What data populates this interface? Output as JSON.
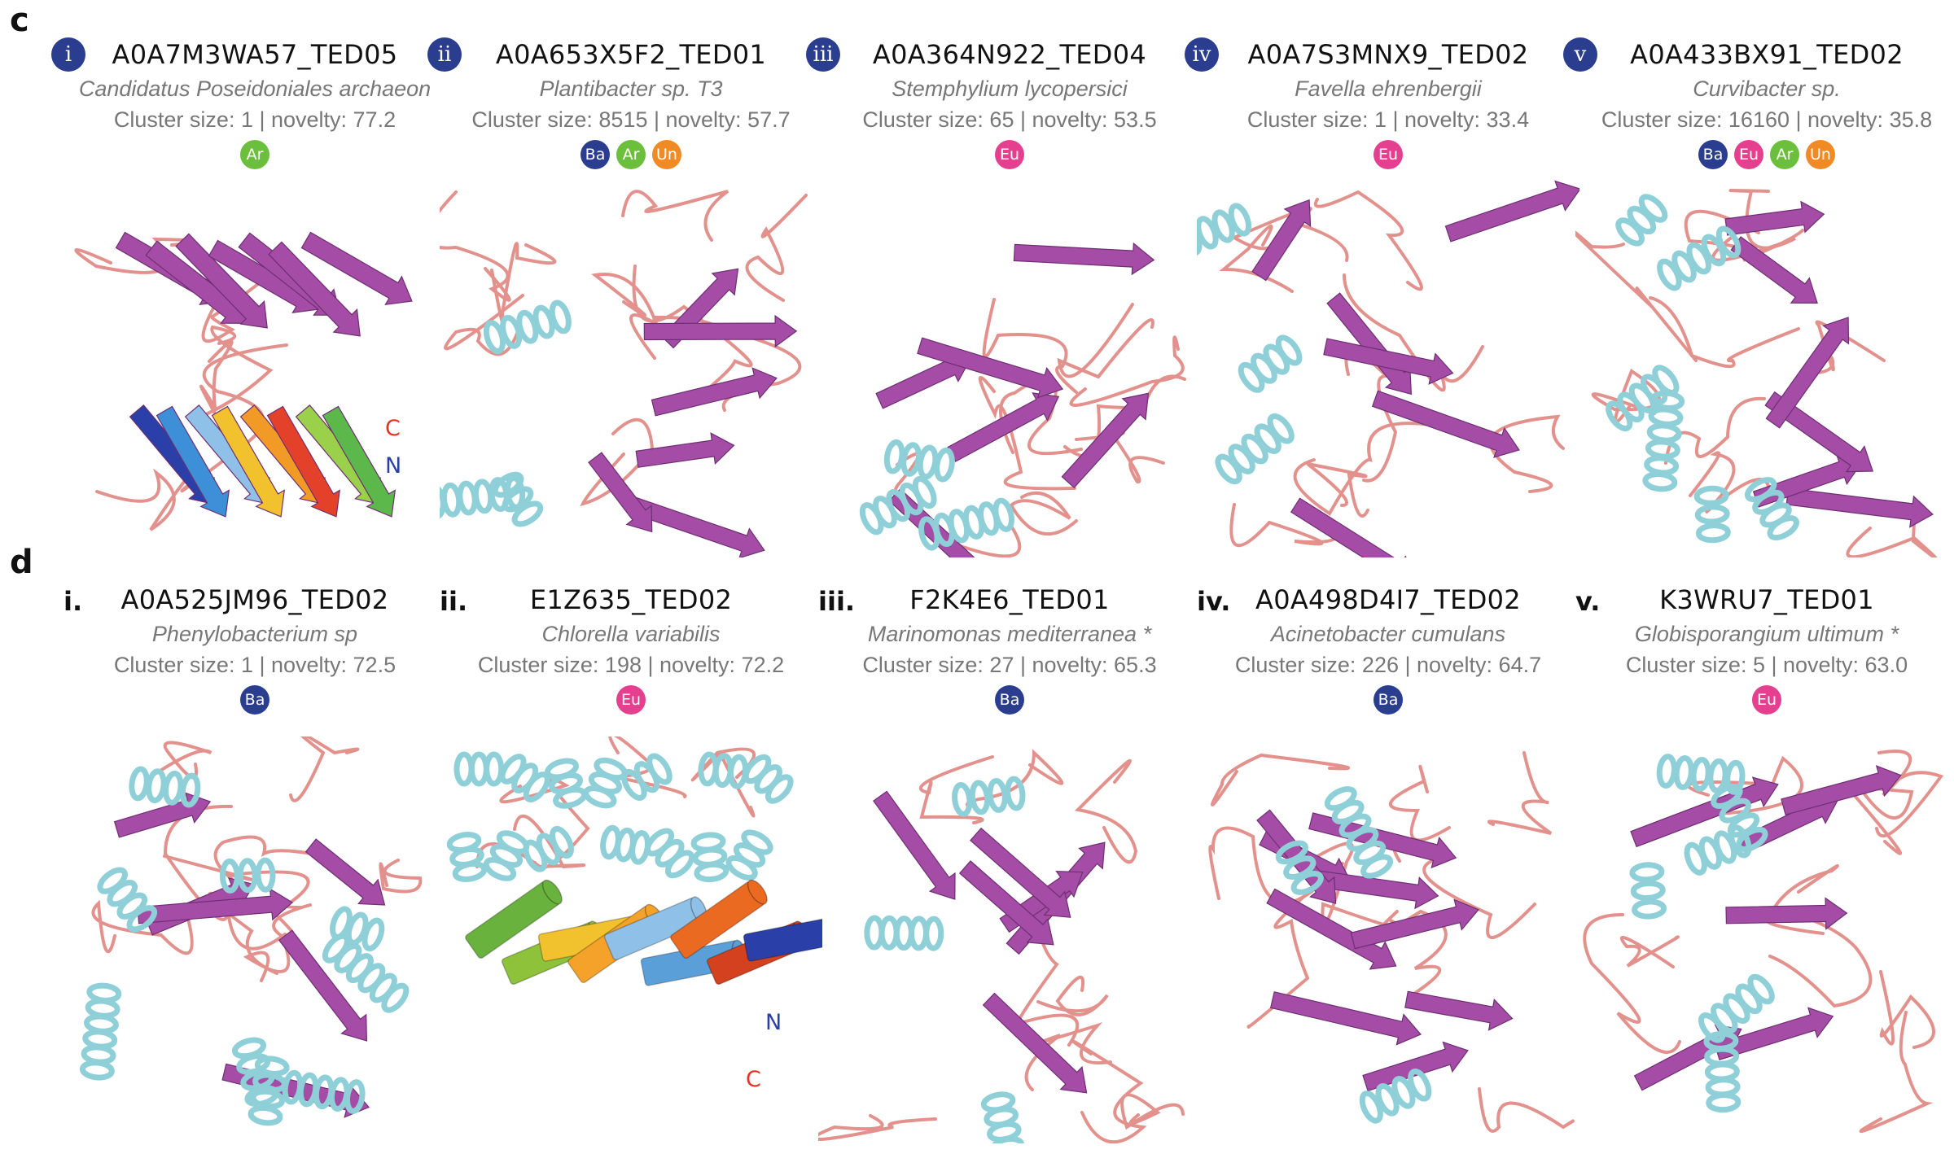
{
  "colors": {
    "Ba": "#2a3d8f",
    "Ar": "#6cbf3d",
    "Un": "#f08a24",
    "Eu": "#e5408f",
    "sheet": "#a44ca6",
    "helix": "#8fd0d8",
    "loop": "#e3918c"
  },
  "panels": {
    "c": "c",
    "d": "d"
  },
  "row_c": [
    {
      "roman": "i",
      "id": "A0A7M3WA57_TED05",
      "species": "Candidatus Poseidoniales archaeon",
      "meta": "Cluster size: 1 | novelty: 77.2",
      "badges": [
        "Ar"
      ],
      "labels": {
        "c": "C",
        "n": "N"
      }
    },
    {
      "roman": "ii",
      "id": "A0A653X5F2_TED01",
      "species": "Plantibacter sp. T3",
      "meta": "Cluster size: 8515 | novelty: 57.7",
      "badges": [
        "Ba",
        "Ar",
        "Un"
      ]
    },
    {
      "roman": "iii",
      "id": "A0A364N922_TED04",
      "species": "Stemphylium lycopersici",
      "meta": "Cluster size: 65 | novelty: 53.5",
      "badges": [
        "Eu"
      ]
    },
    {
      "roman": "iv",
      "id": "A0A7S3MNX9_TED02",
      "species": "Favella ehrenbergii",
      "meta": "Cluster size: 1 | novelty: 33.4",
      "badges": [
        "Eu"
      ]
    },
    {
      "roman": "v",
      "id": "A0A433BX91_TED02",
      "species": "Curvibacter sp.",
      "meta": "Cluster size: 16160 | novelty: 35.8",
      "badges": [
        "Ba",
        "Eu",
        "Ar",
        "Un"
      ]
    }
  ],
  "row_d": [
    {
      "roman": "i.",
      "id": "A0A525JM96_TED02",
      "species": "Phenylobacterium sp",
      "meta": "Cluster size: 1 | novelty: 72.5",
      "badges": [
        "Ba"
      ]
    },
    {
      "roman": "ii.",
      "id": "E1Z635_TED02",
      "species": "Chlorella variabilis",
      "meta": "Cluster size: 198 | novelty: 72.2",
      "badges": [
        "Eu"
      ],
      "labels": {
        "c": "C",
        "n": "N"
      }
    },
    {
      "roman": "iii.",
      "id": "F2K4E6_TED01",
      "species": "Marinomonas mediterranea *",
      "meta": "Cluster size: 27 | novelty: 65.3",
      "badges": [
        "Ba"
      ]
    },
    {
      "roman": "iv.",
      "id": "A0A498D4I7_TED02",
      "species": "Acinetobacter cumulans",
      "meta": "Cluster size: 226 | novelty: 64.7",
      "badges": [
        "Ba"
      ]
    },
    {
      "roman": "v.",
      "id": "K3WRU7_TED01",
      "species": "Globisporangium ultimum *",
      "meta": "Cluster size: 5 | novelty: 63.0",
      "badges": [
        "Eu"
      ]
    }
  ]
}
